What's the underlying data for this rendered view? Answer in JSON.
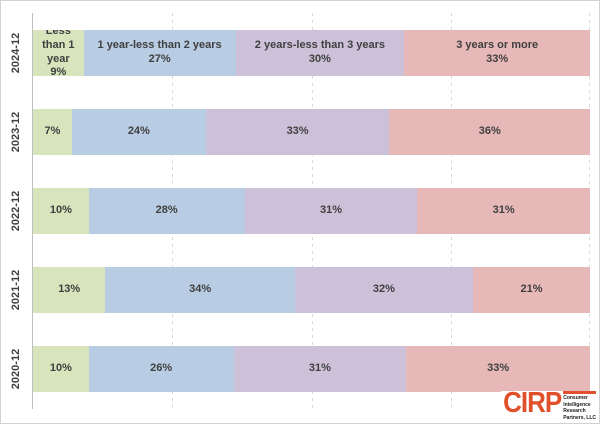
{
  "chart_data": {
    "type": "bar",
    "subtype": "horizontal-stacked-100",
    "title": "",
    "xlabel": "",
    "ylabel": "",
    "xlim": [
      0,
      100
    ],
    "gridlines_percent": [
      25,
      50,
      75,
      100
    ],
    "grid": "dashed-vertical",
    "legend": "none (series names printed inside first row segments)",
    "value_suffix": "%",
    "categories": [
      "2024-12",
      "2023-12",
      "2022-12",
      "2021-12",
      "2020-12"
    ],
    "series": [
      {
        "name": "Less than 1 year",
        "color": "#D7E4BC",
        "values": [
          9,
          7,
          10,
          13,
          10
        ]
      },
      {
        "name": "1 year-less than 2 years",
        "color": "#B8CCE4",
        "values": [
          27,
          24,
          28,
          34,
          26
        ]
      },
      {
        "name": "2 years-less than 3 years",
        "color": "#CCC1D9",
        "values": [
          30,
          33,
          31,
          32,
          31
        ]
      },
      {
        "name": "3 years or more",
        "color": "#E6B9B8",
        "values": [
          33,
          36,
          31,
          21,
          33
        ]
      }
    ],
    "series_names_shown_on_row": "2024-12"
  },
  "branding": {
    "logo_text": "CIRP",
    "tagline_lines": [
      "Consumer",
      "Intelligence",
      "Research",
      "Partners, LLC"
    ]
  },
  "colors": {
    "brand_orange": "#E0512B",
    "label_text": "#3F3F3F",
    "gridline": "#D9D9D9",
    "axis_line": "#BFBFBF",
    "frame_border": "#D2D2D2",
    "background": "#FFFFFF"
  }
}
